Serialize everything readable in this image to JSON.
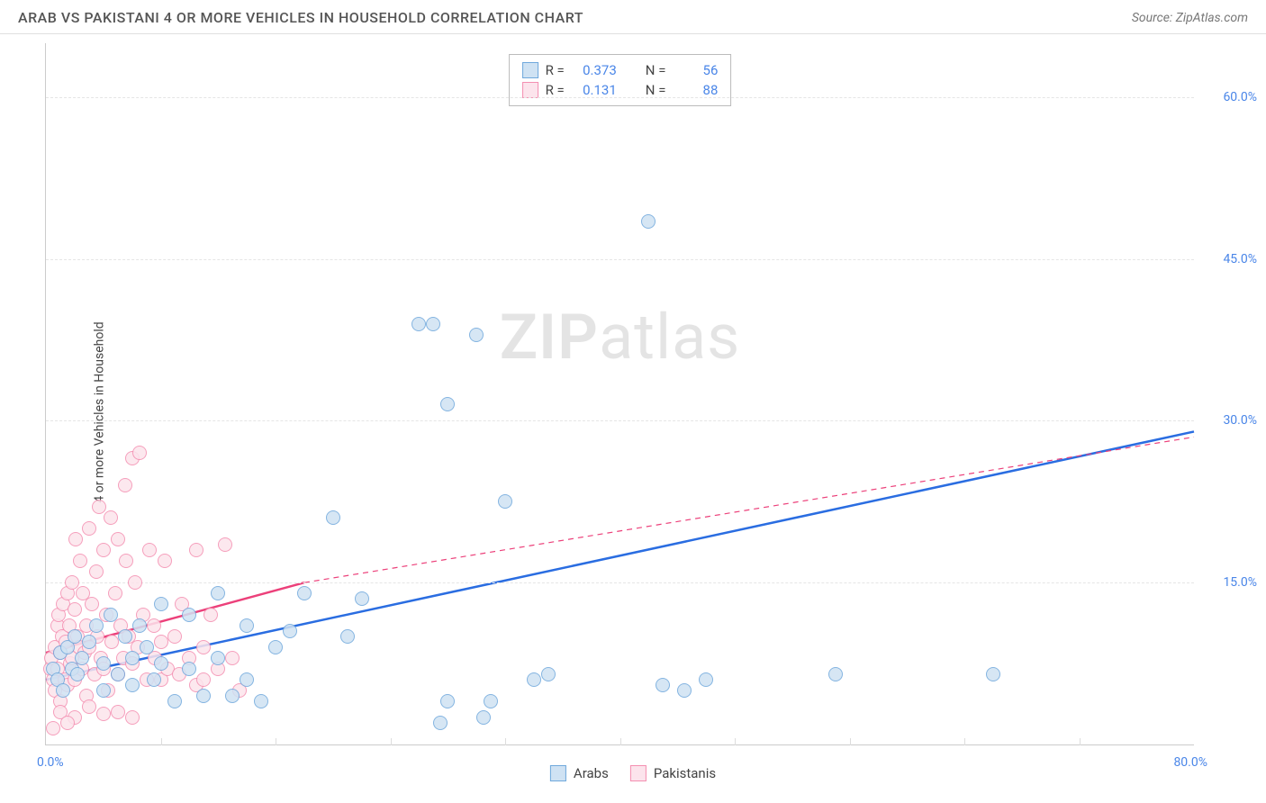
{
  "header": {
    "title": "ARAB VS PAKISTANI 4 OR MORE VEHICLES IN HOUSEHOLD CORRELATION CHART",
    "source_prefix": "Source: ",
    "source": "ZipAtlas.com"
  },
  "axes": {
    "y_label": "4 or more Vehicles in Household",
    "x_min_label": "0.0%",
    "x_max_label": "80.0%",
    "xlim": [
      0,
      80
    ],
    "ylim": [
      0,
      65
    ],
    "y_ticks": [
      {
        "v": 15,
        "label": "15.0%"
      },
      {
        "v": 30,
        "label": "30.0%"
      },
      {
        "v": 45,
        "label": "45.0%"
      },
      {
        "v": 60,
        "label": "60.0%"
      }
    ],
    "x_tick_positions": [
      8,
      16,
      24,
      32,
      40,
      48,
      56,
      64,
      72
    ],
    "grid_color": "#e5e5e5",
    "axis_color": "#cccccc",
    "tick_label_color": "#4a86e8"
  },
  "series": {
    "arabs": {
      "label": "Arabs",
      "marker_fill": "#cfe2f3",
      "marker_stroke": "#6fa8dc",
      "marker_radius": 8,
      "trend_color": "#2a6de1",
      "trend_width": 2.5,
      "trend_start": [
        0,
        6
      ],
      "trend_end": [
        80,
        29
      ],
      "points": [
        [
          0.5,
          7
        ],
        [
          0.8,
          6
        ],
        [
          1,
          8.5
        ],
        [
          1.2,
          5
        ],
        [
          1.5,
          9
        ],
        [
          1.8,
          7
        ],
        [
          2,
          10
        ],
        [
          2.2,
          6.5
        ],
        [
          2.5,
          8
        ],
        [
          3,
          9.5
        ],
        [
          3.5,
          11
        ],
        [
          4,
          7.5
        ],
        [
          4,
          5
        ],
        [
          4.5,
          12
        ],
        [
          5,
          6.5
        ],
        [
          5.5,
          10
        ],
        [
          6,
          8
        ],
        [
          6,
          5.5
        ],
        [
          6.5,
          11
        ],
        [
          7,
          9
        ],
        [
          7.5,
          6
        ],
        [
          8,
          13
        ],
        [
          8,
          7.5
        ],
        [
          9,
          4
        ],
        [
          10,
          12
        ],
        [
          10,
          7
        ],
        [
          11,
          4.5
        ],
        [
          12,
          8
        ],
        [
          12,
          14
        ],
        [
          13,
          4.5
        ],
        [
          14,
          11
        ],
        [
          14,
          6
        ],
        [
          15,
          4
        ],
        [
          16,
          9
        ],
        [
          17,
          10.5
        ],
        [
          18,
          14
        ],
        [
          20,
          21
        ],
        [
          21,
          10
        ],
        [
          22,
          13.5
        ],
        [
          26,
          39
        ],
        [
          27,
          39
        ],
        [
          28,
          4
        ],
        [
          28,
          31.5
        ],
        [
          30,
          38
        ],
        [
          31,
          4
        ],
        [
          32,
          22.5
        ],
        [
          34,
          6
        ],
        [
          35,
          6.5
        ],
        [
          42,
          48.5
        ],
        [
          43,
          5.5
        ],
        [
          44.5,
          5
        ],
        [
          46,
          6
        ],
        [
          55,
          6.5
        ],
        [
          66,
          6.5
        ],
        [
          27.5,
          2
        ],
        [
          30.5,
          2.5
        ]
      ]
    },
    "pakistanis": {
      "label": "Pakistanis",
      "marker_fill": "#fce4ec",
      "marker_stroke": "#f48fb1",
      "marker_radius": 8,
      "trend_color": "#ec407a",
      "trend_width": 2.5,
      "trend_solid_end": [
        18,
        15
      ],
      "trend_start": [
        0,
        8.5
      ],
      "trend_dash_end": [
        80,
        28.5
      ],
      "points": [
        [
          0.3,
          7
        ],
        [
          0.4,
          8
        ],
        [
          0.5,
          6
        ],
        [
          0.6,
          9
        ],
        [
          0.6,
          5
        ],
        [
          0.8,
          11
        ],
        [
          0.8,
          7
        ],
        [
          0.9,
          12
        ],
        [
          1,
          4
        ],
        [
          1,
          8.5
        ],
        [
          1.1,
          10
        ],
        [
          1.2,
          13
        ],
        [
          1.3,
          6
        ],
        [
          1.4,
          9.5
        ],
        [
          1.5,
          14
        ],
        [
          1.5,
          5.5
        ],
        [
          1.6,
          11
        ],
        [
          1.7,
          7.5
        ],
        [
          1.8,
          15
        ],
        [
          1.8,
          8
        ],
        [
          2,
          12.5
        ],
        [
          2,
          6
        ],
        [
          2.1,
          19
        ],
        [
          2.2,
          10
        ],
        [
          2.3,
          9
        ],
        [
          2.4,
          17
        ],
        [
          2.5,
          7
        ],
        [
          2.6,
          14
        ],
        [
          2.7,
          8.5
        ],
        [
          2.8,
          11
        ],
        [
          2.8,
          4.5
        ],
        [
          3,
          20
        ],
        [
          3,
          9
        ],
        [
          3.2,
          13
        ],
        [
          3.4,
          6.5
        ],
        [
          3.5,
          16
        ],
        [
          3.6,
          10
        ],
        [
          3.7,
          22
        ],
        [
          3.8,
          8
        ],
        [
          4,
          18
        ],
        [
          4,
          7
        ],
        [
          4.2,
          12
        ],
        [
          4.3,
          5
        ],
        [
          4.5,
          21
        ],
        [
          4.6,
          9.5
        ],
        [
          4.8,
          14
        ],
        [
          5,
          19
        ],
        [
          5,
          6.5
        ],
        [
          5.2,
          11
        ],
        [
          5.4,
          8
        ],
        [
          5.5,
          24
        ],
        [
          5.6,
          17
        ],
        [
          5.8,
          10
        ],
        [
          6,
          26.5
        ],
        [
          6,
          7.5
        ],
        [
          6.2,
          15
        ],
        [
          6.4,
          9
        ],
        [
          6.5,
          27
        ],
        [
          6.8,
          12
        ],
        [
          7,
          6
        ],
        [
          7.2,
          18
        ],
        [
          7.5,
          11
        ],
        [
          7.6,
          8
        ],
        [
          8,
          9.5
        ],
        [
          8,
          6
        ],
        [
          8.3,
          17
        ],
        [
          8.5,
          7
        ],
        [
          9,
          10
        ],
        [
          9.3,
          6.5
        ],
        [
          9.5,
          13
        ],
        [
          10,
          8
        ],
        [
          10.5,
          18
        ],
        [
          10.5,
          5.5
        ],
        [
          11,
          9
        ],
        [
          11,
          6
        ],
        [
          11.5,
          12
        ],
        [
          12,
          7
        ],
        [
          12.5,
          18.5
        ],
        [
          13,
          8
        ],
        [
          13.5,
          5
        ],
        [
          1,
          3
        ],
        [
          2,
          2.5
        ],
        [
          3,
          3.5
        ],
        [
          4,
          2.8
        ],
        [
          5,
          3
        ],
        [
          6,
          2.5
        ],
        [
          0.5,
          1.5
        ],
        [
          1.5,
          2
        ]
      ]
    }
  },
  "stats": {
    "rows": [
      {
        "swatch_fill": "#cfe2f3",
        "swatch_stroke": "#6fa8dc",
        "r": "0.373",
        "n": "56"
      },
      {
        "swatch_fill": "#fce4ec",
        "swatch_stroke": "#f48fb1",
        "r": "0.131",
        "n": "88"
      }
    ],
    "r_label": "R =",
    "n_label": "N ="
  },
  "watermark": {
    "zip": "ZIP",
    "atlas": "atlas"
  },
  "background_color": "#ffffff"
}
